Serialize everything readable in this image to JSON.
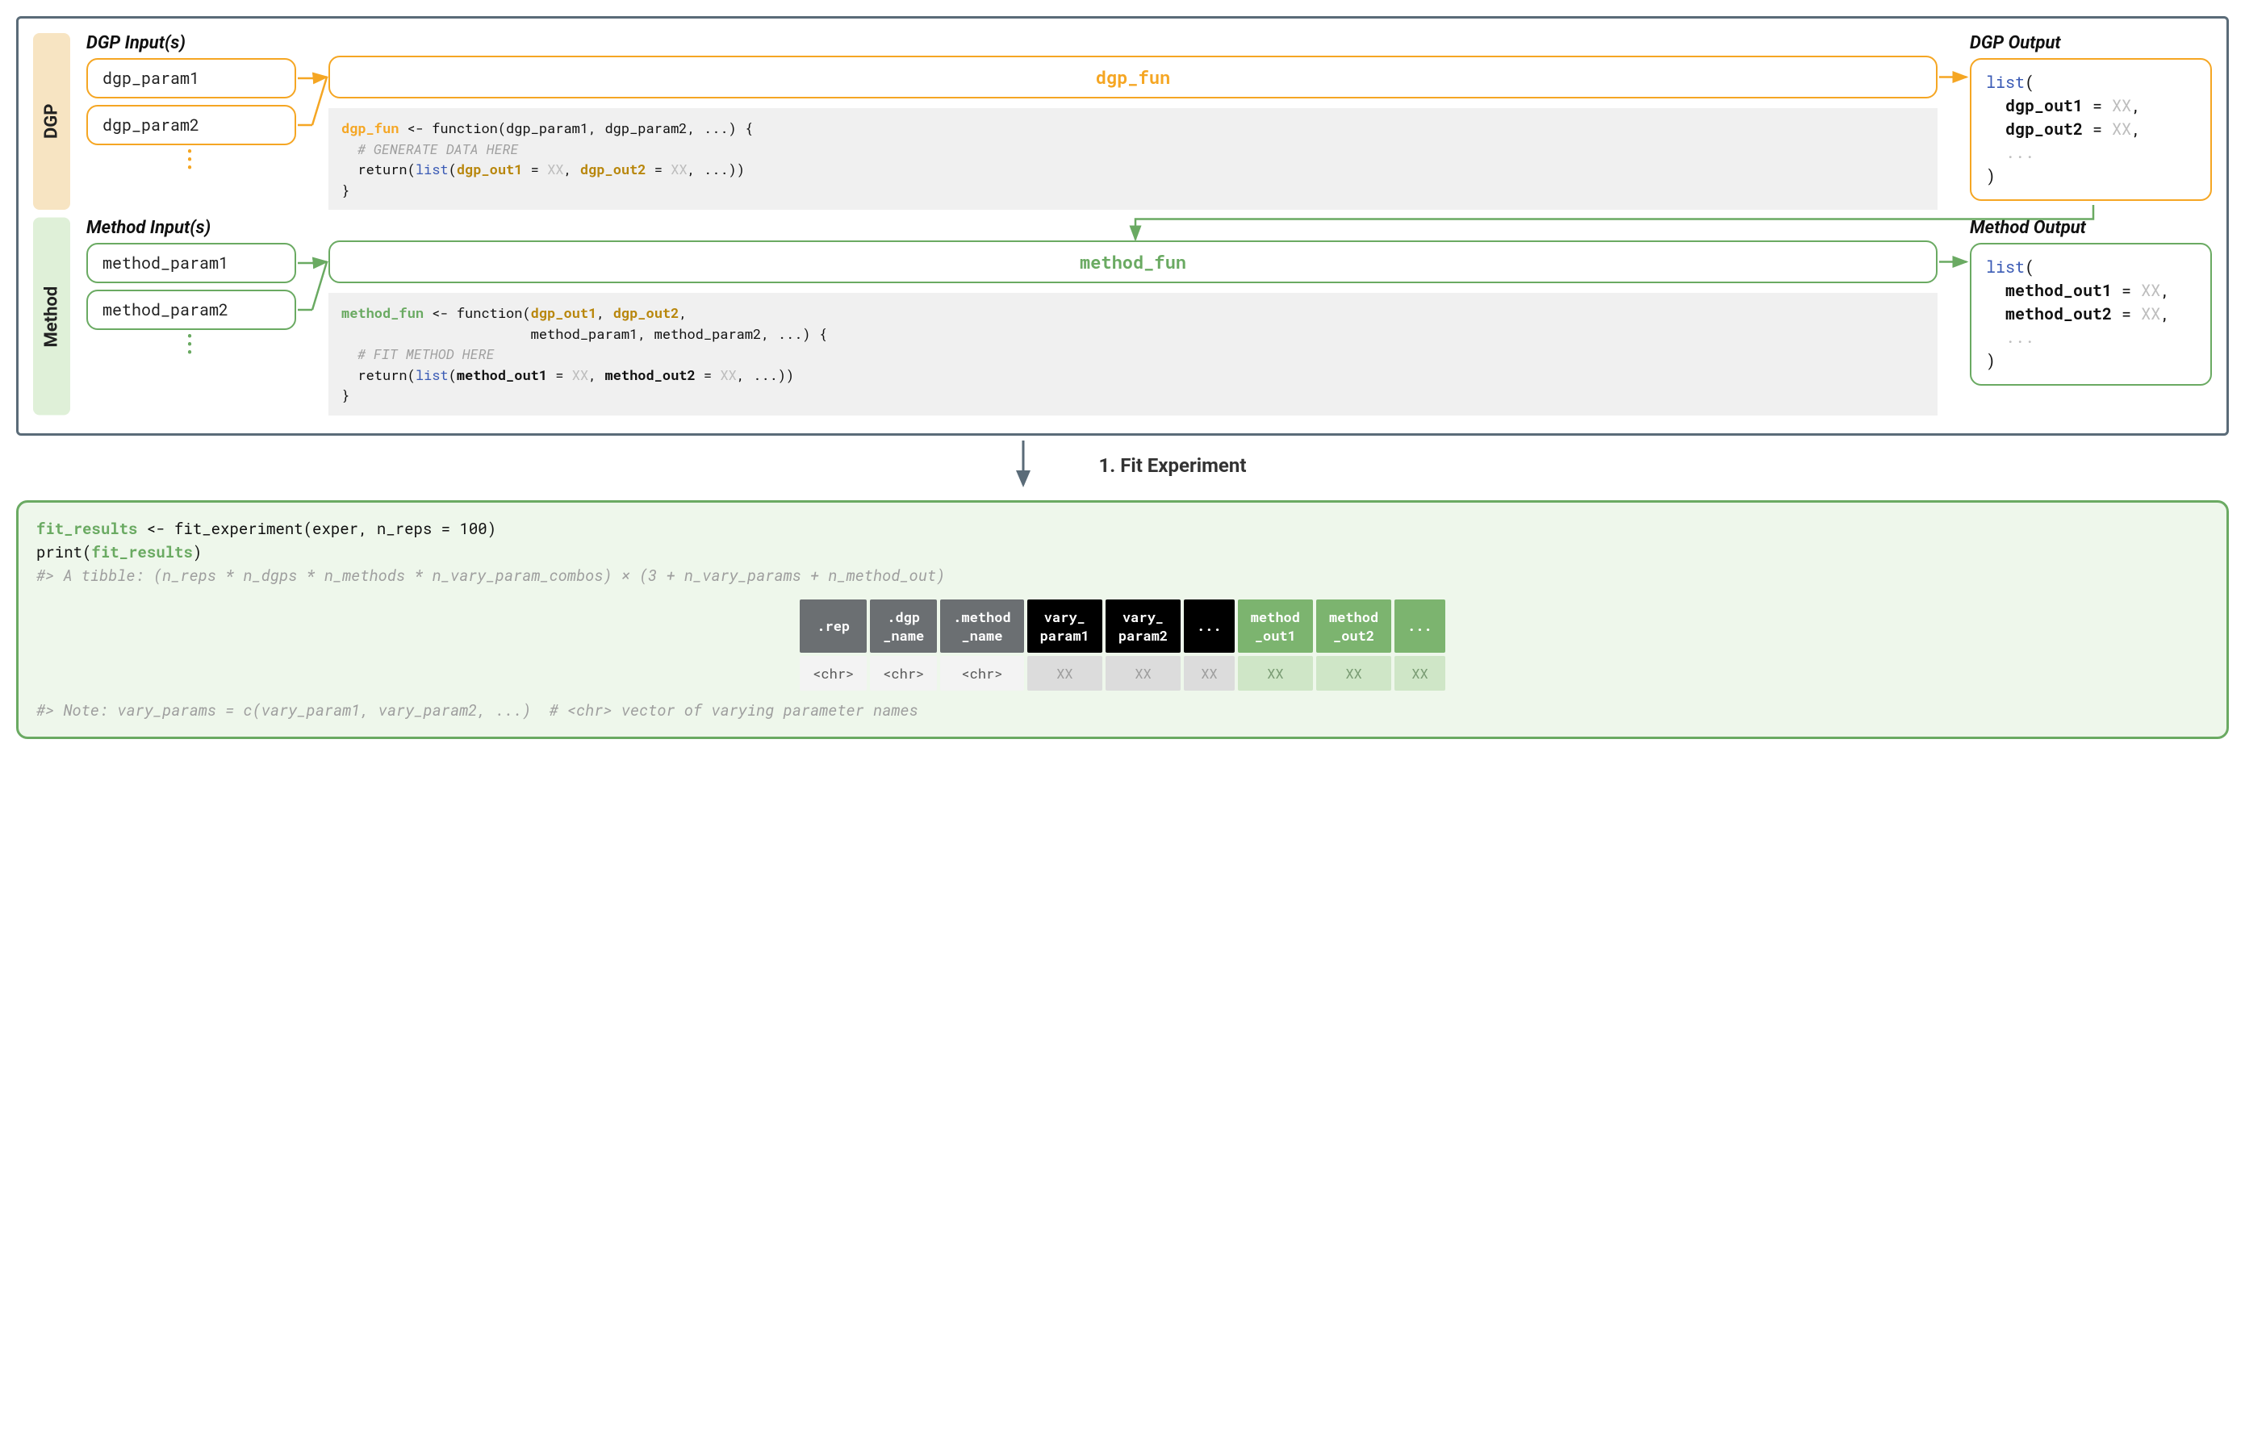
{
  "colors": {
    "frame": "#5a6b78",
    "orange": "#f5a623",
    "green": "#6aaa62",
    "codebg": "#f0f0f0",
    "fitbg": "#eef7eb",
    "fitborder": "#6aaa62",
    "hgrey": "#6b6f72",
    "hblack": "#000000",
    "hgreen": "#7cb46f",
    "dgrey": "#f3f3f3",
    "dlgrey": "#dcdcdc",
    "dlgreen": "#cfe6c7"
  },
  "dgp": {
    "tab": "DGP",
    "inputs_title": "DGP Input(s)",
    "output_title": "DGP Output",
    "params": [
      "dgp_param1",
      "dgp_param2"
    ],
    "fun_label": "dgp_fun",
    "code": {
      "fn": "dgp_fun",
      "sig": " <- function(dgp_param1, dgp_param2, ...) {",
      "comment": "  # GENERATE DATA HERE",
      "ret_pre": "  return(",
      "ret_list": "list",
      "ret_open": "(",
      "ret_a1": "dgp_out1",
      "ret_eq": " = ",
      "ret_xx": "XX",
      "ret_sep": ", ",
      "ret_a2": "dgp_out2",
      "ret_tail": ", ...))",
      "close": "}"
    },
    "out": {
      "list": "list",
      "open": "(",
      "a1": "dgp_out1",
      "a2": "dgp_out2",
      "eq": " = ",
      "xx": "XX",
      "comma": ",",
      "dots": "...",
      "close": ")"
    }
  },
  "method": {
    "tab": "Method",
    "inputs_title": "Method Input(s)",
    "output_title": "Method Output",
    "params": [
      "method_param1",
      "method_param2"
    ],
    "fun_label": "method_fun",
    "code": {
      "fn": "method_fun",
      "sig1": " <- function(",
      "d1": "dgp_out1",
      "sep": ", ",
      "d2": "dgp_out2",
      "comma": ",",
      "sig2": "                       method_param1, method_param2, ...) {",
      "comment": "  # FIT METHOD HERE",
      "ret_pre": "  return(",
      "ret_list": "list",
      "ret_open": "(",
      "ret_a1": "method_out1",
      "ret_eq": " = ",
      "ret_xx": "XX",
      "ret_a2": "method_out2",
      "ret_tail": ", ...))",
      "close": "}"
    },
    "out": {
      "list": "list",
      "open": "(",
      "a1": "method_out1",
      "a2": "method_out2",
      "eq": " = ",
      "xx": "XX",
      "comma": ",",
      "dots": "...",
      "close": ")"
    }
  },
  "connector_label": "1. Fit Experiment",
  "fit": {
    "line1_a": "fit_results",
    "line1_b": " <- fit_experiment(exper, n_reps = 100)",
    "line2_a": "print(",
    "line2_b": "fit_results",
    "line2_c": ")",
    "comment1": "#> A tibble: (n_reps * n_dgps * n_methods * n_vary_param_combos) × (3 + n_vary_params + n_method_out)",
    "table": {
      "headers": [
        {
          "text": ".rep",
          "cls": "h-grey"
        },
        {
          "text": ".dgp\n_name",
          "cls": "h-grey"
        },
        {
          "text": ".method\n_name",
          "cls": "h-grey"
        },
        {
          "text": "vary_\nparam1",
          "cls": "h-black"
        },
        {
          "text": "vary_\nparam2",
          "cls": "h-black"
        },
        {
          "text": "...",
          "cls": "h-black"
        },
        {
          "text": "method\n_out1",
          "cls": "h-green"
        },
        {
          "text": "method\n_out2",
          "cls": "h-green"
        },
        {
          "text": "...",
          "cls": "h-green"
        }
      ],
      "row": [
        {
          "text": "<chr>",
          "cls": "d-grey"
        },
        {
          "text": "<chr>",
          "cls": "d-grey"
        },
        {
          "text": "<chr>",
          "cls": "d-grey"
        },
        {
          "text": "XX",
          "cls": "d-lgrey"
        },
        {
          "text": "XX",
          "cls": "d-lgrey"
        },
        {
          "text": "XX",
          "cls": "d-lgrey"
        },
        {
          "text": "XX",
          "cls": "d-lgrn"
        },
        {
          "text": "XX",
          "cls": "d-lgrn"
        },
        {
          "text": "XX",
          "cls": "d-lgrn"
        }
      ]
    },
    "comment2": "#> Note: vary_params = c(vary_param1, vary_param2, ...)  # <chr> vector of varying parameter names"
  }
}
